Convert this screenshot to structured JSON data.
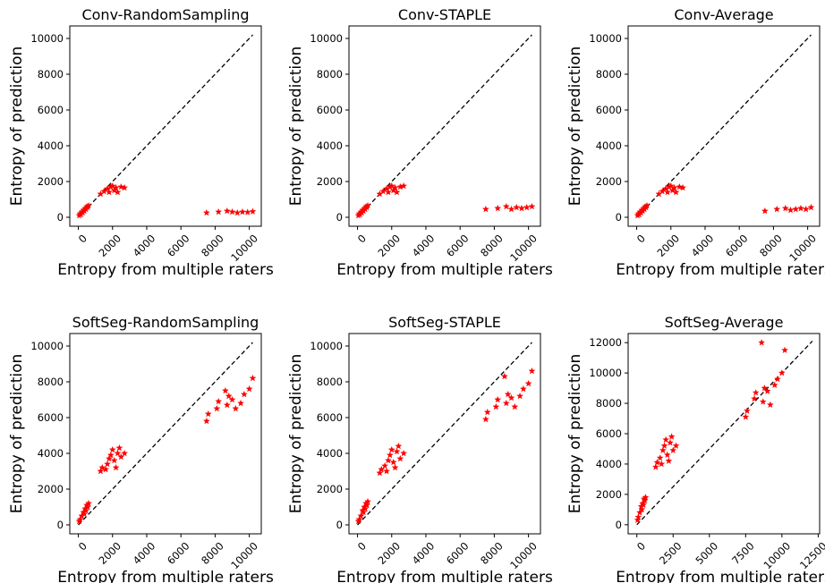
{
  "figure": {
    "marker_color": "#ff0000",
    "identity_line_color": "#000000"
  },
  "chart_data": [
    {
      "type": "scatter",
      "title": "Conv-RandomSampling",
      "xlabel": "Entropy from multiple raters",
      "ylabel": "Entropy of prediction",
      "xlim": [
        -500,
        10700
      ],
      "ylim": [
        -500,
        10700
      ],
      "xticks": [
        0,
        2000,
        4000,
        6000,
        8000,
        10000
      ],
      "yticks": [
        0,
        2000,
        4000,
        6000,
        8000,
        10000
      ],
      "identity_line": [
        [
          0,
          0
        ],
        [
          10200,
          10200
        ]
      ],
      "x": [
        50,
        100,
        150,
        200,
        250,
        300,
        350,
        400,
        450,
        500,
        550,
        600,
        1300,
        1500,
        1700,
        1800,
        1900,
        2000,
        2100,
        2200,
        2300,
        2500,
        2700,
        7500,
        8200,
        8700,
        9000,
        9300,
        9600,
        9900,
        10200
      ],
      "y": [
        100,
        200,
        150,
        300,
        250,
        400,
        350,
        500,
        450,
        600,
        550,
        650,
        1300,
        1450,
        1600,
        1400,
        1700,
        1750,
        1500,
        1650,
        1400,
        1700,
        1650,
        250,
        300,
        350,
        300,
        250,
        300,
        280,
        320
      ]
    },
    {
      "type": "scatter",
      "title": "Conv-STAPLE",
      "xlabel": "Entropy from multiple raters",
      "ylabel": "Entropy of prediction",
      "xlim": [
        -500,
        10700
      ],
      "ylim": [
        -500,
        10700
      ],
      "xticks": [
        0,
        2000,
        4000,
        6000,
        8000,
        10000
      ],
      "yticks": [
        0,
        2000,
        4000,
        6000,
        8000,
        10000
      ],
      "identity_line": [
        [
          0,
          0
        ],
        [
          10200,
          10200
        ]
      ],
      "x": [
        50,
        100,
        150,
        200,
        250,
        300,
        350,
        400,
        450,
        500,
        550,
        600,
        1300,
        1500,
        1700,
        1800,
        1900,
        2000,
        2100,
        2200,
        2300,
        2500,
        2700,
        7500,
        8200,
        8700,
        9000,
        9300,
        9600,
        9900,
        10200
      ],
      "y": [
        100,
        200,
        150,
        300,
        250,
        400,
        350,
        500,
        450,
        600,
        550,
        650,
        1300,
        1450,
        1600,
        1400,
        1700,
        1750,
        1500,
        1650,
        1400,
        1700,
        1750,
        450,
        500,
        600,
        450,
        550,
        500,
        550,
        600
      ]
    },
    {
      "type": "scatter",
      "title": "Conv-Average",
      "xlabel": "Entropy from multiple raters",
      "ylabel": "Entropy of prediction",
      "xlim": [
        -500,
        10700
      ],
      "ylim": [
        -500,
        10700
      ],
      "xticks": [
        0,
        2000,
        4000,
        6000,
        8000,
        10000
      ],
      "yticks": [
        0,
        2000,
        4000,
        6000,
        8000,
        10000
      ],
      "identity_line": [
        [
          0,
          0
        ],
        [
          10200,
          10200
        ]
      ],
      "x": [
        50,
        100,
        150,
        200,
        250,
        300,
        350,
        400,
        450,
        500,
        550,
        600,
        1300,
        1500,
        1700,
        1800,
        1900,
        2000,
        2100,
        2200,
        2300,
        2500,
        2700,
        7500,
        8200,
        8700,
        9000,
        9300,
        9600,
        9900,
        10200
      ],
      "y": [
        100,
        200,
        150,
        300,
        250,
        400,
        350,
        500,
        450,
        600,
        550,
        650,
        1300,
        1450,
        1600,
        1400,
        1700,
        1750,
        1500,
        1650,
        1400,
        1700,
        1650,
        350,
        450,
        500,
        400,
        450,
        500,
        450,
        550
      ]
    },
    {
      "type": "scatter",
      "title": "SoftSeg-RandomSampling",
      "xlabel": "Entropy from multiple raters",
      "ylabel": "Entropy of prediction",
      "xlim": [
        -500,
        10700
      ],
      "ylim": [
        -500,
        10700
      ],
      "xticks": [
        0,
        2000,
        4000,
        6000,
        8000,
        10000
      ],
      "yticks": [
        0,
        2000,
        4000,
        6000,
        8000,
        10000
      ],
      "identity_line": [
        [
          0,
          0
        ],
        [
          10200,
          10200
        ]
      ],
      "x": [
        50,
        100,
        200,
        300,
        350,
        400,
        450,
        500,
        550,
        600,
        1300,
        1400,
        1600,
        1700,
        1800,
        1900,
        2000,
        2100,
        2200,
        2300,
        2400,
        2500,
        2700,
        7500,
        7600,
        8100,
        8200,
        8600,
        8700,
        8800,
        9000,
        9200,
        9500,
        9700,
        10000,
        10200
      ],
      "y": [
        200,
        300,
        500,
        700,
        600,
        900,
        800,
        1100,
        1000,
        1200,
        3000,
        3200,
        3100,
        3400,
        3700,
        3900,
        4200,
        3600,
        3200,
        4000,
        4300,
        3800,
        4000,
        5800,
        6200,
        6500,
        6900,
        7500,
        6700,
        7200,
        7000,
        6500,
        6800,
        7300,
        7600,
        8200
      ]
    },
    {
      "type": "scatter",
      "title": "SoftSeg-STAPLE",
      "xlabel": "Entropy from multiple raters",
      "ylabel": "Entropy of prediction",
      "xlim": [
        -500,
        10700
      ],
      "ylim": [
        -500,
        10700
      ],
      "xticks": [
        0,
        2000,
        4000,
        6000,
        8000,
        10000
      ],
      "yticks": [
        0,
        2000,
        4000,
        6000,
        8000,
        10000
      ],
      "identity_line": [
        [
          0,
          0
        ],
        [
          10200,
          10200
        ]
      ],
      "x": [
        50,
        100,
        200,
        300,
        350,
        400,
        450,
        500,
        550,
        600,
        1300,
        1400,
        1600,
        1700,
        1800,
        1900,
        2000,
        2100,
        2200,
        2300,
        2400,
        2500,
        2700,
        7500,
        7600,
        8100,
        8200,
        8600,
        8700,
        8800,
        9000,
        9200,
        9500,
        9700,
        10000,
        10200
      ],
      "y": [
        200,
        300,
        500,
        800,
        700,
        1000,
        900,
        1200,
        1100,
        1300,
        2900,
        3100,
        3300,
        3000,
        3600,
        3900,
        4200,
        3500,
        3200,
        4100,
        4400,
        3700,
        4000,
        5900,
        6300,
        6600,
        7000,
        8300,
        6800,
        7300,
        7100,
        6600,
        7200,
        7600,
        7900,
        8600
      ]
    },
    {
      "type": "scatter",
      "title": "SoftSeg-Average",
      "xlabel": "Entropy from multiple raters",
      "ylabel": "Entropy of prediction",
      "xlim": [
        -600,
        12600
      ],
      "ylim": [
        -600,
        12600
      ],
      "xticks": [
        0,
        2500,
        5000,
        7500,
        10000,
        12500
      ],
      "yticks": [
        0,
        2000,
        4000,
        6000,
        8000,
        10000,
        12000
      ],
      "identity_line": [
        [
          0,
          0
        ],
        [
          12100,
          12100
        ]
      ],
      "x": [
        50,
        100,
        200,
        300,
        350,
        400,
        450,
        500,
        550,
        600,
        1300,
        1400,
        1600,
        1700,
        1800,
        1900,
        2000,
        2100,
        2200,
        2300,
        2400,
        2500,
        2700,
        7500,
        7600,
        8100,
        8200,
        8600,
        8700,
        8800,
        9000,
        9200,
        9500,
        9700,
        10000,
        10200
      ],
      "y": [
        300,
        500,
        800,
        1200,
        1000,
        1400,
        1300,
        1700,
        1600,
        1800,
        3800,
        4100,
        4400,
        4000,
        4900,
        5200,
        5600,
        4600,
        4200,
        5400,
        5800,
        4900,
        5200,
        7100,
        7500,
        8300,
        8700,
        12000,
        8100,
        9000,
        8800,
        7900,
        9200,
        9600,
        10000,
        11500
      ]
    }
  ]
}
